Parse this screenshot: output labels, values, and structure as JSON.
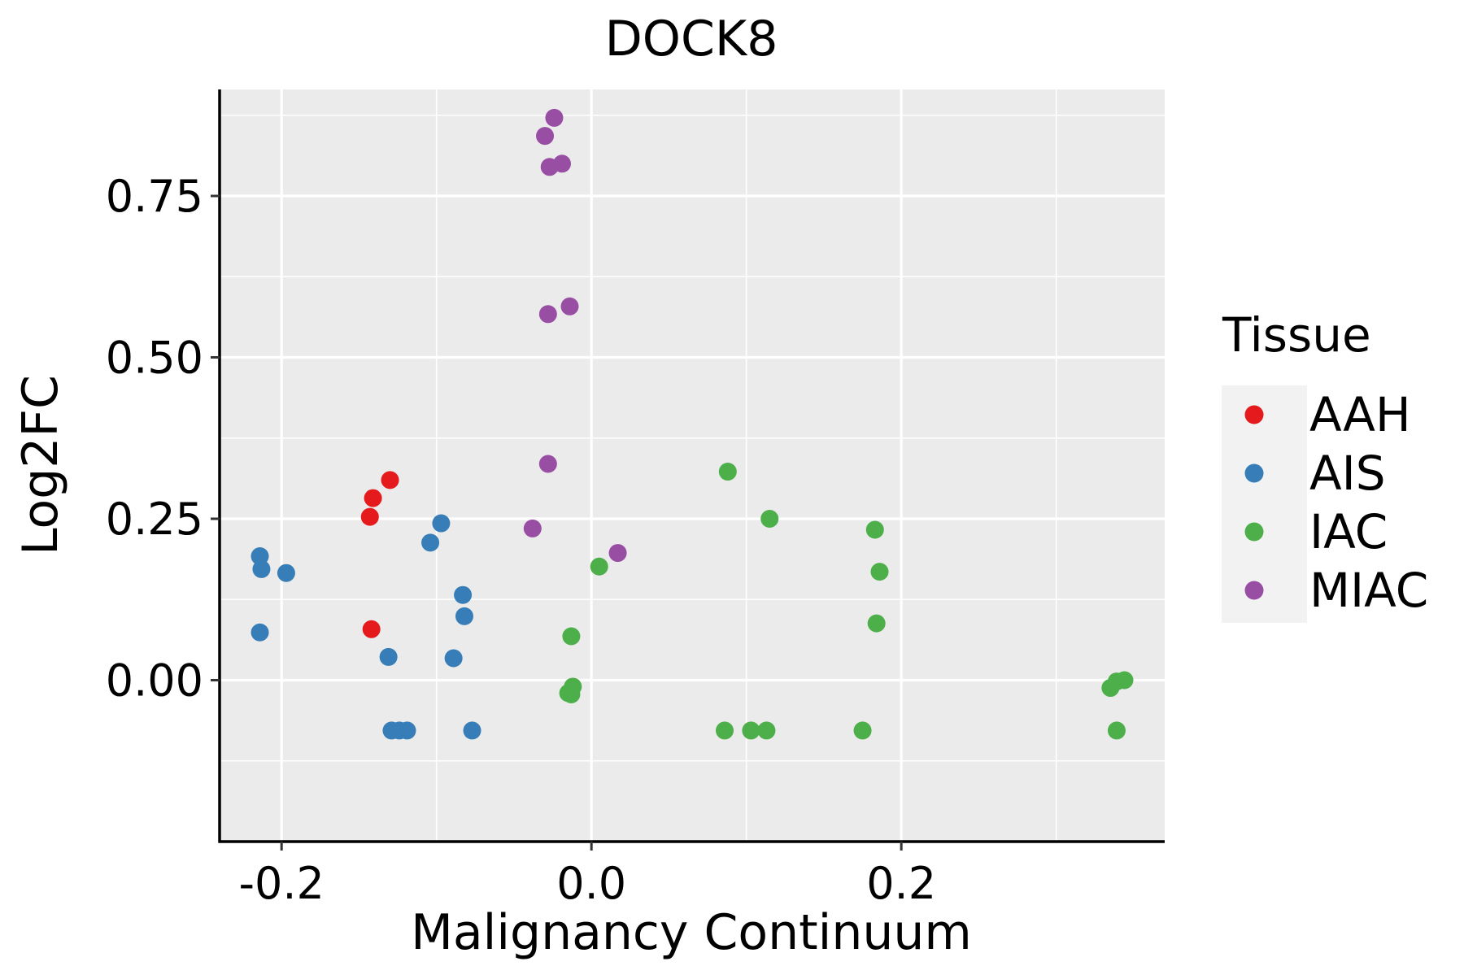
{
  "chart_data": {
    "type": "scatter",
    "title": "DOCK8",
    "xlabel": "Malignancy Continuum",
    "ylabel": "Log2FC",
    "xlim": [
      -0.24,
      0.37
    ],
    "ylim": [
      -0.25,
      0.915
    ],
    "x_ticks": [
      -0.2,
      0.0,
      0.2
    ],
    "x_tick_labels": [
      "-0.2",
      "0.0",
      "0.2"
    ],
    "y_ticks": [
      0.0,
      0.25,
      0.5,
      0.75
    ],
    "y_tick_labels": [
      "0.00",
      "0.25",
      "0.50",
      "0.75"
    ],
    "grid": true,
    "legend_title": "Tissue",
    "legend_position": "right",
    "series": [
      {
        "name": "AAH",
        "color": "#E41A1C",
        "points": [
          {
            "x": -0.141,
            "y": 0.282
          },
          {
            "x": -0.13,
            "y": 0.31
          },
          {
            "x": -0.143,
            "y": 0.253
          },
          {
            "x": -0.142,
            "y": 0.079
          }
        ]
      },
      {
        "name": "AIS",
        "color": "#377EB8",
        "points": [
          {
            "x": -0.214,
            "y": 0.192
          },
          {
            "x": -0.213,
            "y": 0.172
          },
          {
            "x": -0.197,
            "y": 0.166
          },
          {
            "x": -0.214,
            "y": 0.074
          },
          {
            "x": -0.097,
            "y": 0.243
          },
          {
            "x": -0.104,
            "y": 0.213
          },
          {
            "x": -0.083,
            "y": 0.132
          },
          {
            "x": -0.082,
            "y": 0.099
          },
          {
            "x": -0.131,
            "y": 0.036
          },
          {
            "x": -0.089,
            "y": 0.034
          },
          {
            "x": -0.129,
            "y": -0.078
          },
          {
            "x": -0.124,
            "y": -0.078
          },
          {
            "x": -0.119,
            "y": -0.078
          },
          {
            "x": -0.077,
            "y": -0.078
          }
        ]
      },
      {
        "name": "IAC",
        "color": "#4DAF4A",
        "points": [
          {
            "x": 0.088,
            "y": 0.323
          },
          {
            "x": 0.115,
            "y": 0.25
          },
          {
            "x": 0.183,
            "y": 0.233
          },
          {
            "x": 0.005,
            "y": 0.176
          },
          {
            "x": 0.186,
            "y": 0.168
          },
          {
            "x": 0.184,
            "y": 0.088
          },
          {
            "x": -0.013,
            "y": 0.068
          },
          {
            "x": -0.012,
            "y": -0.01
          },
          {
            "x": -0.015,
            "y": -0.02
          },
          {
            "x": -0.013,
            "y": -0.022
          },
          {
            "x": 0.086,
            "y": -0.078
          },
          {
            "x": 0.103,
            "y": -0.078
          },
          {
            "x": 0.113,
            "y": -0.078
          },
          {
            "x": 0.175,
            "y": -0.078
          },
          {
            "x": 0.335,
            "y": -0.012
          },
          {
            "x": 0.339,
            "y": -0.002
          },
          {
            "x": 0.344,
            "y": 0.0
          },
          {
            "x": 0.339,
            "y": -0.078
          }
        ]
      },
      {
        "name": "MIAC",
        "color": "#984EA3",
        "points": [
          {
            "x": -0.024,
            "y": 0.871
          },
          {
            "x": -0.03,
            "y": 0.843
          },
          {
            "x": -0.019,
            "y": 0.8
          },
          {
            "x": -0.027,
            "y": 0.795
          },
          {
            "x": -0.014,
            "y": 0.579
          },
          {
            "x": -0.028,
            "y": 0.567
          },
          {
            "x": -0.028,
            "y": 0.335
          },
          {
            "x": -0.038,
            "y": 0.235
          },
          {
            "x": 0.017,
            "y": 0.197
          }
        ]
      }
    ]
  }
}
